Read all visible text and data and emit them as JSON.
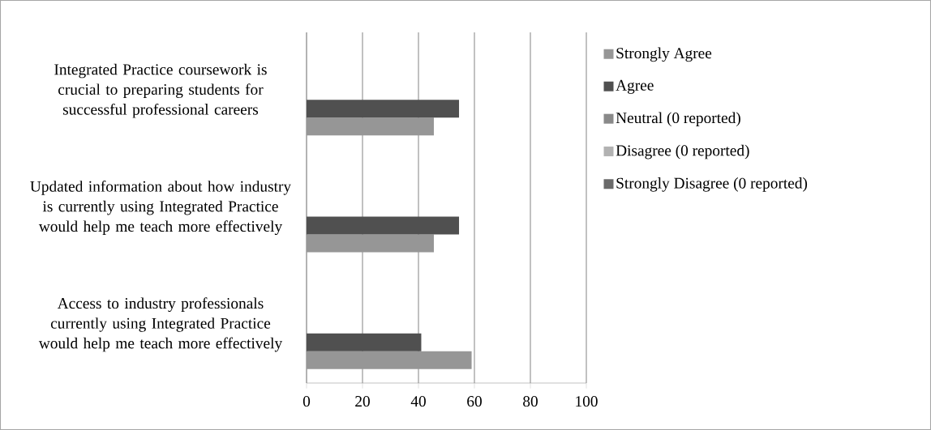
{
  "chart_data": {
    "type": "bar",
    "orientation": "horizontal",
    "categories": [
      "Integrated Practice coursework is crucial to preparing students for successful professional careers",
      "Updated information about how industry is currently using Integrated Practice would help me teach more effectively",
      "Access to industry professionals currently using Integrated Practice would help me teach more effectively"
    ],
    "series": [
      {
        "name": "Strongly Agree",
        "color": "#969696",
        "values": [
          45.5,
          45.5,
          59
        ]
      },
      {
        "name": "Agree",
        "color": "#505050",
        "values": [
          54.5,
          54.5,
          41
        ]
      },
      {
        "name": "Neutral (0 reported)",
        "color": "#898989",
        "values": [
          0,
          0,
          0
        ]
      },
      {
        "name": "Disagree (0 reported)",
        "color": "#b2b2b2",
        "values": [
          0,
          0,
          0
        ]
      },
      {
        "name": "Strongly Disagree (0 reported)",
        "color": "#6a6a6a",
        "values": [
          0,
          0,
          0
        ]
      }
    ],
    "xlim": [
      0,
      100
    ],
    "xticks": [
      0,
      20,
      40,
      60,
      80,
      100
    ],
    "grid": "x",
    "legend": "right"
  }
}
